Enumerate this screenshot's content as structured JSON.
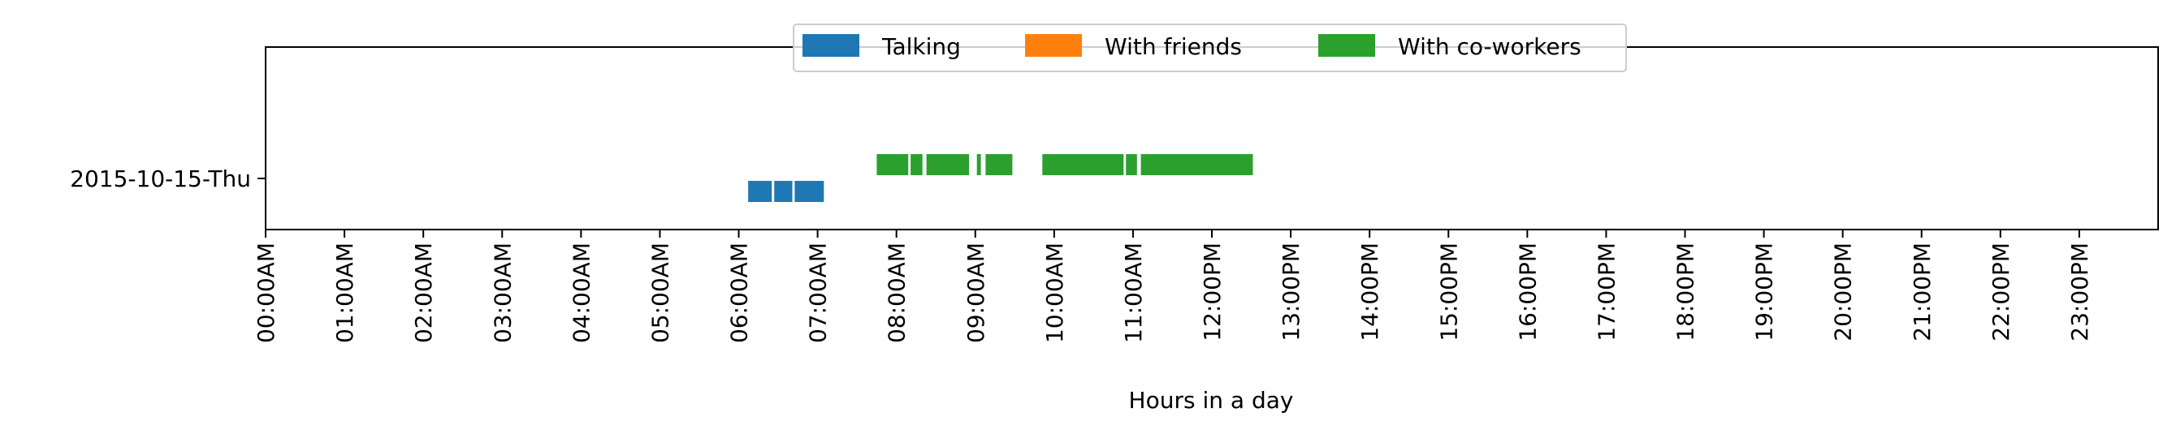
{
  "chart_data": {
    "type": "bar",
    "subtype": "horizontal-timeline",
    "title": "",
    "xlabel": "Hours in a day",
    "ylabel": "",
    "xlim": [
      0,
      24
    ],
    "x_ticks": [
      0,
      1,
      2,
      3,
      4,
      5,
      6,
      7,
      8,
      9,
      10,
      11,
      12,
      13,
      14,
      15,
      16,
      17,
      18,
      19,
      20,
      21,
      22,
      23
    ],
    "x_tick_labels": [
      "00:00AM",
      "01:00AM",
      "02:00AM",
      "03:00AM",
      "04:00AM",
      "05:00AM",
      "06:00AM",
      "07:00AM",
      "08:00AM",
      "09:00AM",
      "10:00AM",
      "11:00AM",
      "12:00PM",
      "13:00PM",
      "14:00PM",
      "15:00PM",
      "16:00PM",
      "17:00PM",
      "18:00PM",
      "19:00PM",
      "20:00PM",
      "21:00PM",
      "22:00PM",
      "23:00PM"
    ],
    "categories": [
      "2015-10-15-Thu"
    ],
    "grid": false,
    "legend_position": "top-center",
    "series": [
      {
        "name": "Talking",
        "color": "#1f77b4",
        "row_offset": "below",
        "intervals": [
          [
            6.12,
            6.42
          ],
          [
            6.45,
            6.68
          ],
          [
            6.71,
            7.08
          ]
        ]
      },
      {
        "name": "With friends",
        "color": "#ff7f0e",
        "row_offset": "center",
        "intervals": []
      },
      {
        "name": "With co-workers",
        "color": "#2ca02c",
        "row_offset": "above",
        "intervals": [
          [
            7.75,
            8.15
          ],
          [
            8.18,
            8.33
          ],
          [
            8.38,
            8.92
          ],
          [
            9.02,
            9.07
          ],
          [
            9.13,
            9.47
          ],
          [
            9.85,
            10.88
          ],
          [
            10.91,
            11.05
          ],
          [
            11.1,
            12.52
          ]
        ]
      }
    ]
  }
}
